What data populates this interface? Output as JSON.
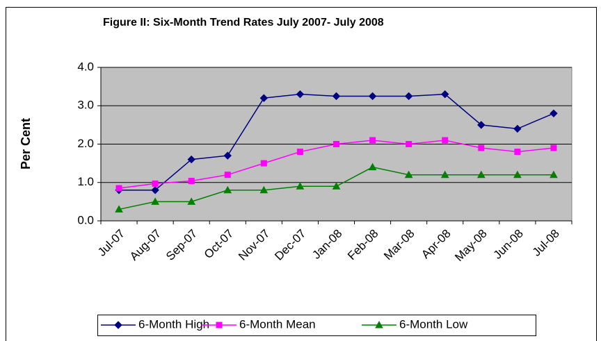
{
  "chart_data": {
    "type": "line",
    "title": "Figure II: Six-Month Trend Rates  July 2007- July 2008",
    "y_label": "Per Cent",
    "categories": [
      "Jul-07",
      "Aug-07",
      "Sep-07",
      "Oct-07",
      "Nov-07",
      "Dec-07",
      "Jan-08",
      "Feb-08",
      "Mar-08",
      "Apr-08",
      "May-08",
      "Jun-08",
      "Jul-08"
    ],
    "series": [
      {
        "name": "6-Month High",
        "color": "#000080",
        "marker": "diamond",
        "values": [
          0.8,
          0.8,
          1.6,
          1.7,
          3.2,
          3.3,
          3.25,
          3.25,
          3.25,
          3.3,
          2.5,
          2.4,
          2.8
        ]
      },
      {
        "name": "6-Month Mean",
        "color": "#ff00ff",
        "marker": "square",
        "values": [
          0.85,
          0.97,
          1.04,
          1.2,
          1.5,
          1.8,
          2.0,
          2.1,
          2.0,
          2.1,
          1.9,
          1.8,
          1.9
        ]
      },
      {
        "name": "6-Month Low",
        "color": "#008000",
        "marker": "triangle",
        "values": [
          0.3,
          0.5,
          0.5,
          0.8,
          0.8,
          0.9,
          0.9,
          1.4,
          1.2,
          1.2,
          1.2,
          1.2,
          1.2
        ]
      }
    ],
    "ylim": [
      0,
      4
    ],
    "yticks": [
      {
        "value": 0,
        "label": "0.0"
      },
      {
        "value": 1,
        "label": "1.0"
      },
      {
        "value": 2,
        "label": "2.0"
      },
      {
        "value": 3,
        "label": "3.0"
      },
      {
        "value": 4,
        "label": "4.0"
      }
    ],
    "grid": true,
    "legend": "bottom"
  }
}
